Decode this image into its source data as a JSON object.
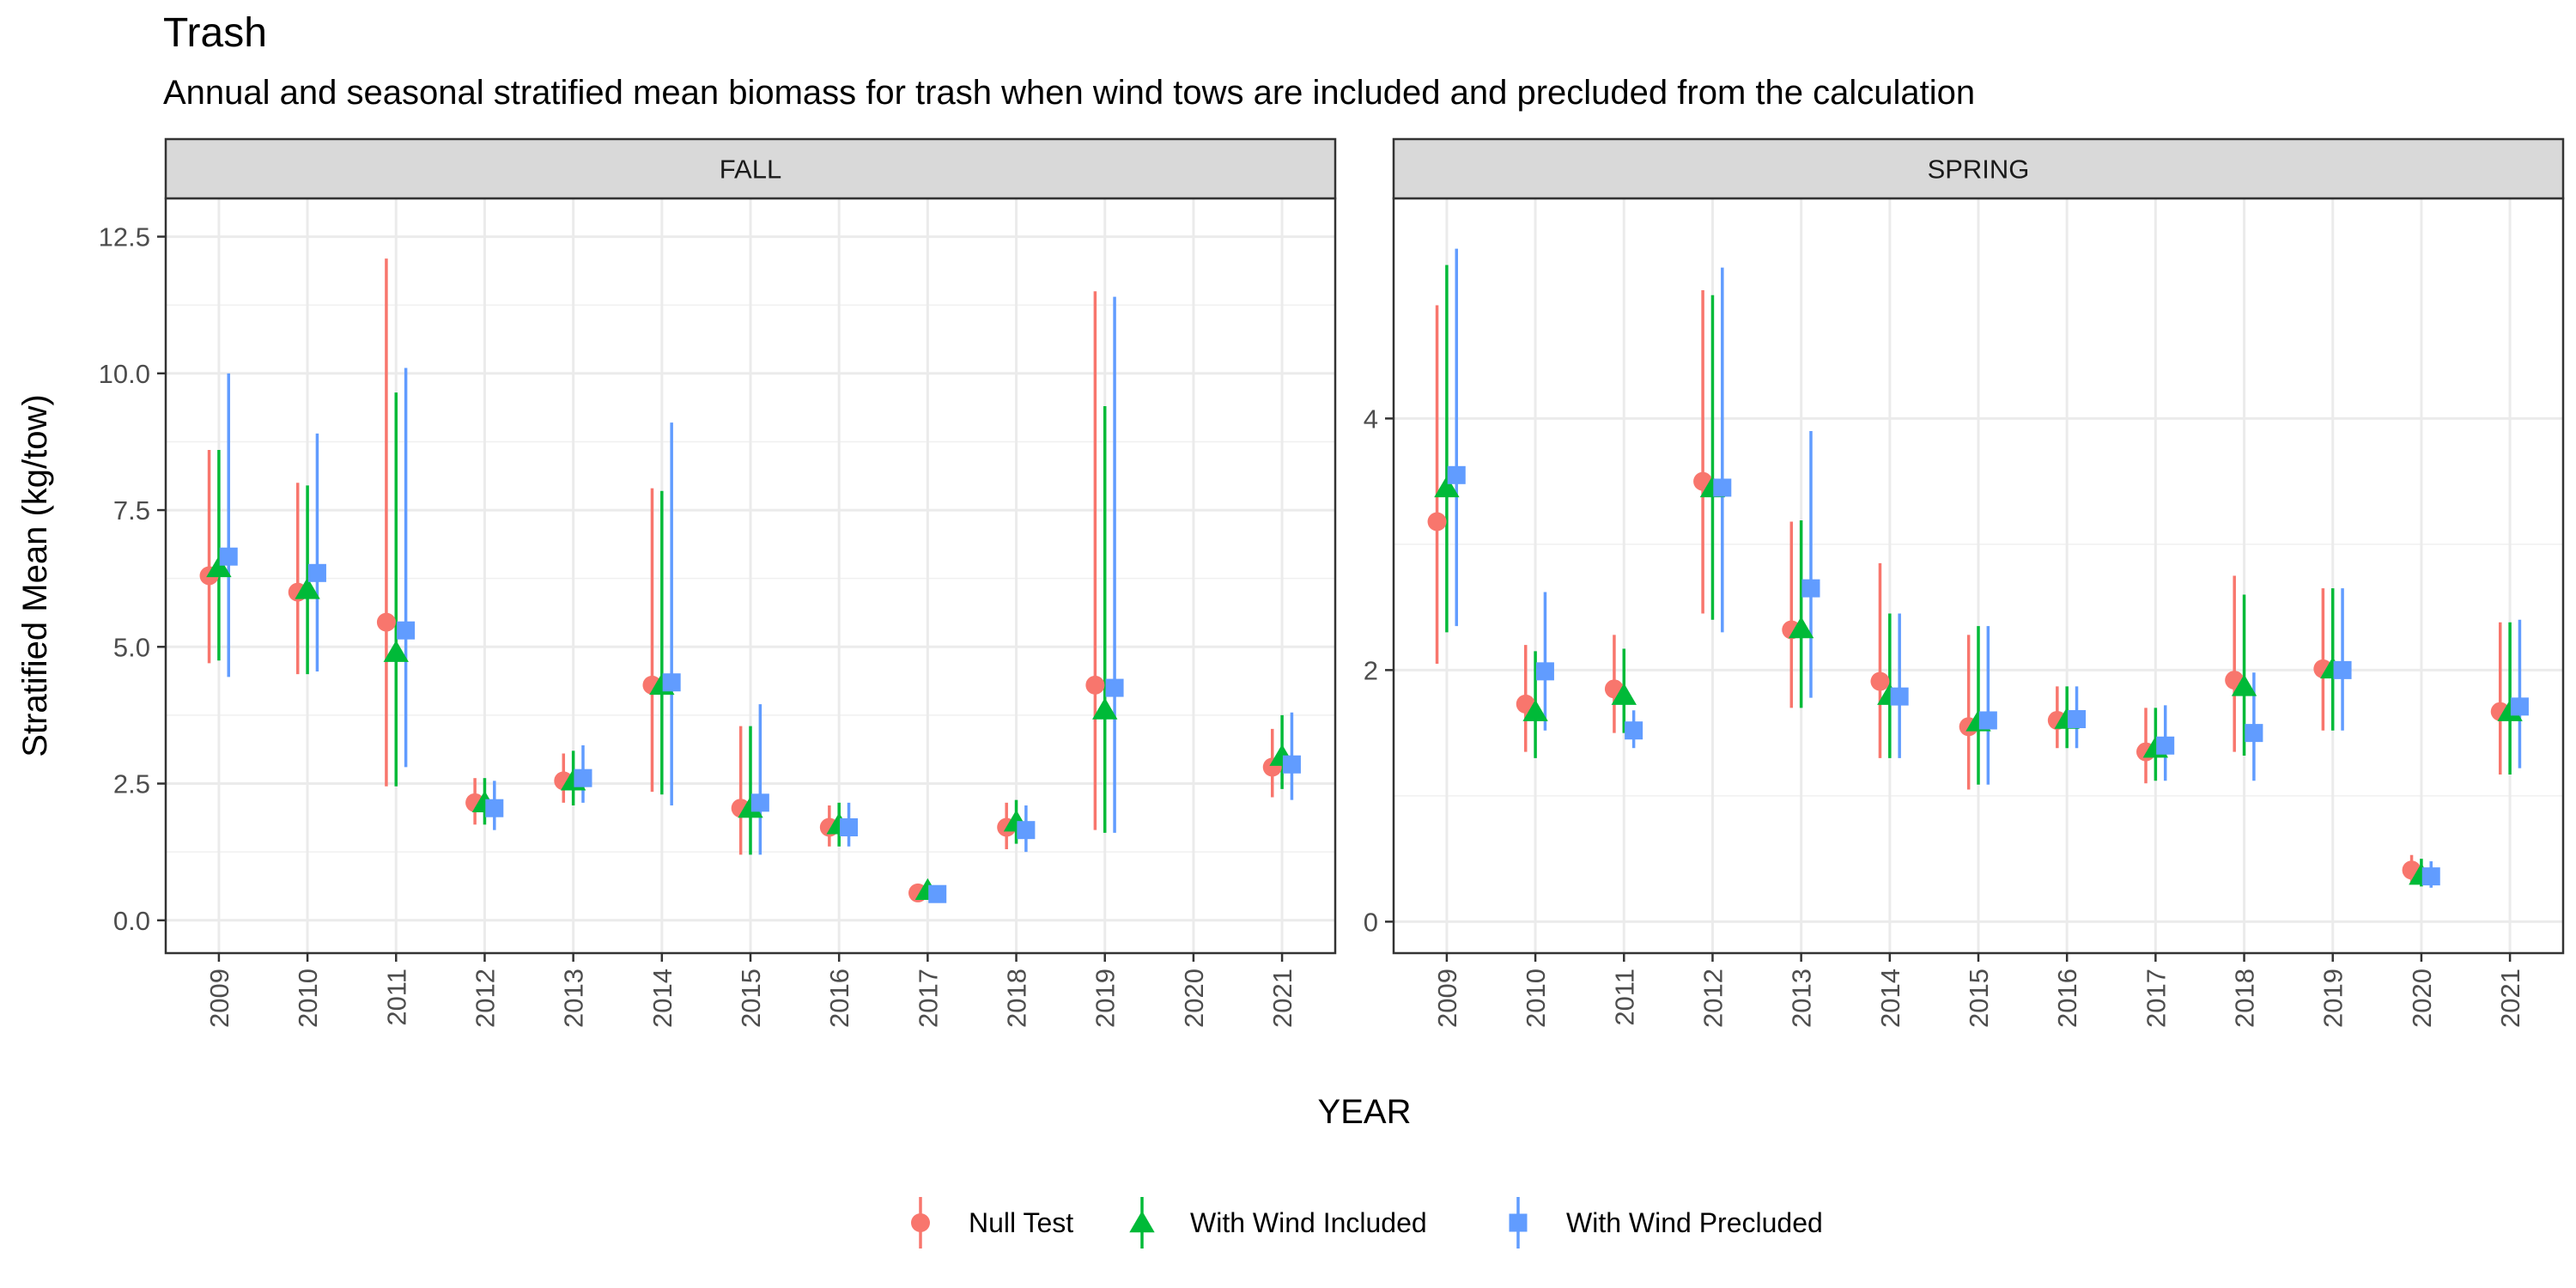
{
  "chart_data": {
    "type": "scatter",
    "title": "Trash",
    "subtitle": "Annual and seasonal stratified mean biomass for trash when wind tows are included and precluded from the calculation",
    "xlabel": "YEAR",
    "ylabel": "Stratified Mean (kg/tow)",
    "years": [
      "2009",
      "2010",
      "2011",
      "2012",
      "2013",
      "2014",
      "2015",
      "2016",
      "2017",
      "2018",
      "2019",
      "2020",
      "2021"
    ],
    "legend_position": "bottom",
    "series_meta": [
      {
        "name": "Null Test",
        "color": "#F8766D",
        "shape": "circle"
      },
      {
        "name": "With Wind Included",
        "color": "#00BA38",
        "shape": "triangle"
      },
      {
        "name": "With Wind Precluded",
        "color": "#619CFF",
        "shape": "square"
      }
    ],
    "panels": [
      {
        "name": "FALL",
        "ylim": [
          -0.6,
          13.2
        ],
        "yticks": [
          0.0,
          2.5,
          5.0,
          7.5,
          10.0,
          12.5
        ],
        "ytick_labels": [
          "0.0",
          "2.5",
          "5.0",
          "7.5",
          "10.0",
          "12.5"
        ],
        "series": [
          {
            "name": "Null Test",
            "points": [
              {
                "x": "2009",
                "y": 6.3,
                "lo": 4.7,
                "hi": 8.6
              },
              {
                "x": "2010",
                "y": 6.0,
                "lo": 4.5,
                "hi": 8.0
              },
              {
                "x": "2011",
                "y": 5.45,
                "lo": 2.45,
                "hi": 12.1
              },
              {
                "x": "2012",
                "y": 2.15,
                "lo": 1.75,
                "hi": 2.6
              },
              {
                "x": "2013",
                "y": 2.55,
                "lo": 2.15,
                "hi": 3.05
              },
              {
                "x": "2014",
                "y": 4.3,
                "lo": 2.35,
                "hi": 7.9
              },
              {
                "x": "2015",
                "y": 2.05,
                "lo": 1.2,
                "hi": 3.55
              },
              {
                "x": "2016",
                "y": 1.7,
                "lo": 1.35,
                "hi": 2.1
              },
              {
                "x": "2017",
                "y": 0.5,
                "lo": 0.4,
                "hi": 0.6
              },
              {
                "x": "2018",
                "y": 1.7,
                "lo": 1.3,
                "hi": 2.15
              },
              {
                "x": "2019",
                "y": 4.3,
                "lo": 1.65,
                "hi": 11.5
              },
              {
                "x": "2021",
                "y": 2.8,
                "lo": 2.25,
                "hi": 3.5
              }
            ]
          },
          {
            "name": "With Wind Included",
            "points": [
              {
                "x": "2009",
                "y": 6.45,
                "lo": 4.75,
                "hi": 8.6
              },
              {
                "x": "2010",
                "y": 6.05,
                "lo": 4.5,
                "hi": 7.95
              },
              {
                "x": "2011",
                "y": 4.9,
                "lo": 2.45,
                "hi": 9.65
              },
              {
                "x": "2012",
                "y": 2.15,
                "lo": 1.75,
                "hi": 2.6
              },
              {
                "x": "2013",
                "y": 2.55,
                "lo": 2.1,
                "hi": 3.1
              },
              {
                "x": "2014",
                "y": 4.3,
                "lo": 2.3,
                "hi": 7.85
              },
              {
                "x": "2015",
                "y": 2.05,
                "lo": 1.2,
                "hi": 3.55
              },
              {
                "x": "2016",
                "y": 1.75,
                "lo": 1.35,
                "hi": 2.15
              },
              {
                "x": "2017",
                "y": 0.55,
                "lo": 0.4,
                "hi": 0.65
              },
              {
                "x": "2018",
                "y": 1.8,
                "lo": 1.4,
                "hi": 2.2
              },
              {
                "x": "2019",
                "y": 3.85,
                "lo": 1.6,
                "hi": 9.4
              },
              {
                "x": "2021",
                "y": 3.0,
                "lo": 2.4,
                "hi": 3.75
              }
            ]
          },
          {
            "name": "With Wind Precluded",
            "points": [
              {
                "x": "2009",
                "y": 6.65,
                "lo": 4.45,
                "hi": 10.0
              },
              {
                "x": "2010",
                "y": 6.35,
                "lo": 4.55,
                "hi": 8.9
              },
              {
                "x": "2011",
                "y": 5.3,
                "lo": 2.8,
                "hi": 10.1
              },
              {
                "x": "2012",
                "y": 2.05,
                "lo": 1.65,
                "hi": 2.55
              },
              {
                "x": "2013",
                "y": 2.6,
                "lo": 2.15,
                "hi": 3.2
              },
              {
                "x": "2014",
                "y": 4.35,
                "lo": 2.1,
                "hi": 9.1
              },
              {
                "x": "2015",
                "y": 2.15,
                "lo": 1.2,
                "hi": 3.95
              },
              {
                "x": "2016",
                "y": 1.7,
                "lo": 1.35,
                "hi": 2.15
              },
              {
                "x": "2017",
                "y": 0.48,
                "lo": 0.35,
                "hi": 0.6
              },
              {
                "x": "2018",
                "y": 1.65,
                "lo": 1.25,
                "hi": 2.1
              },
              {
                "x": "2019",
                "y": 4.25,
                "lo": 1.6,
                "hi": 11.4
              },
              {
                "x": "2021",
                "y": 2.85,
                "lo": 2.2,
                "hi": 3.8
              }
            ]
          }
        ]
      },
      {
        "name": "SPRING",
        "ylim": [
          -0.25,
          5.75
        ],
        "yticks": [
          0,
          2,
          4
        ],
        "ytick_labels": [
          "0",
          "2",
          "4"
        ],
        "series": [
          {
            "name": "Null Test",
            "points": [
              {
                "x": "2009",
                "y": 3.18,
                "lo": 2.05,
                "hi": 4.9
              },
              {
                "x": "2010",
                "y": 1.73,
                "lo": 1.35,
                "hi": 2.2
              },
              {
                "x": "2011",
                "y": 1.85,
                "lo": 1.5,
                "hi": 2.28
              },
              {
                "x": "2012",
                "y": 3.5,
                "lo": 2.45,
                "hi": 5.02
              },
              {
                "x": "2013",
                "y": 2.32,
                "lo": 1.7,
                "hi": 3.18
              },
              {
                "x": "2014",
                "y": 1.91,
                "lo": 1.3,
                "hi": 2.85
              },
              {
                "x": "2015",
                "y": 1.55,
                "lo": 1.05,
                "hi": 2.28
              },
              {
                "x": "2016",
                "y": 1.6,
                "lo": 1.38,
                "hi": 1.87
              },
              {
                "x": "2017",
                "y": 1.35,
                "lo": 1.1,
                "hi": 1.7
              },
              {
                "x": "2018",
                "y": 1.92,
                "lo": 1.35,
                "hi": 2.75
              },
              {
                "x": "2019",
                "y": 2.01,
                "lo": 1.52,
                "hi": 2.65
              },
              {
                "x": "2020",
                "y": 0.41,
                "lo": 0.31,
                "hi": 0.53
              },
              {
                "x": "2021",
                "y": 1.67,
                "lo": 1.17,
                "hi": 2.38
              }
            ]
          },
          {
            "name": "With Wind Included",
            "points": [
              {
                "x": "2009",
                "y": 3.45,
                "lo": 2.3,
                "hi": 5.22
              },
              {
                "x": "2010",
                "y": 1.67,
                "lo": 1.3,
                "hi": 2.15
              },
              {
                "x": "2011",
                "y": 1.8,
                "lo": 1.5,
                "hi": 2.17
              },
              {
                "x": "2012",
                "y": 3.45,
                "lo": 2.4,
                "hi": 4.98
              },
              {
                "x": "2013",
                "y": 2.33,
                "lo": 1.7,
                "hi": 3.19
              },
              {
                "x": "2014",
                "y": 1.8,
                "lo": 1.3,
                "hi": 2.45
              },
              {
                "x": "2015",
                "y": 1.59,
                "lo": 1.09,
                "hi": 2.35
              },
              {
                "x": "2016",
                "y": 1.61,
                "lo": 1.38,
                "hi": 1.87
              },
              {
                "x": "2017",
                "y": 1.38,
                "lo": 1.12,
                "hi": 1.7
              },
              {
                "x": "2018",
                "y": 1.87,
                "lo": 1.32,
                "hi": 2.6
              },
              {
                "x": "2019",
                "y": 2.01,
                "lo": 1.52,
                "hi": 2.65
              },
              {
                "x": "2020",
                "y": 0.37,
                "lo": 0.28,
                "hi": 0.5
              },
              {
                "x": "2021",
                "y": 1.67,
                "lo": 1.17,
                "hi": 2.38
              }
            ]
          },
          {
            "name": "With Wind Precluded",
            "points": [
              {
                "x": "2009",
                "y": 3.55,
                "lo": 2.35,
                "hi": 5.35
              },
              {
                "x": "2010",
                "y": 1.99,
                "lo": 1.52,
                "hi": 2.62
              },
              {
                "x": "2011",
                "y": 1.52,
                "lo": 1.38,
                "hi": 1.68
              },
              {
                "x": "2012",
                "y": 3.45,
                "lo": 2.3,
                "hi": 5.2
              },
              {
                "x": "2013",
                "y": 2.65,
                "lo": 1.78,
                "hi": 3.9
              },
              {
                "x": "2014",
                "y": 1.79,
                "lo": 1.3,
                "hi": 2.45
              },
              {
                "x": "2015",
                "y": 1.6,
                "lo": 1.09,
                "hi": 2.35
              },
              {
                "x": "2016",
                "y": 1.61,
                "lo": 1.38,
                "hi": 1.87
              },
              {
                "x": "2017",
                "y": 1.4,
                "lo": 1.12,
                "hi": 1.72
              },
              {
                "x": "2018",
                "y": 1.5,
                "lo": 1.12,
                "hi": 1.98
              },
              {
                "x": "2019",
                "y": 2.0,
                "lo": 1.52,
                "hi": 2.65
              },
              {
                "x": "2020",
                "y": 0.36,
                "lo": 0.27,
                "hi": 0.48
              },
              {
                "x": "2021",
                "y": 1.71,
                "lo": 1.22,
                "hi": 2.4
              }
            ]
          }
        ]
      }
    ]
  }
}
